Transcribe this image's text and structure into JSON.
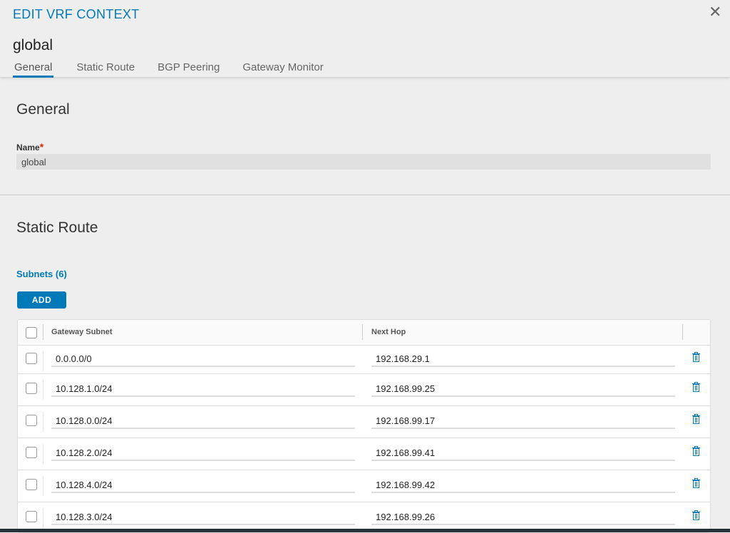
{
  "header": {
    "title": "EDIT VRF CONTEXT",
    "context_name": "global",
    "close_icon": "close-icon",
    "tabs": [
      {
        "label": "General",
        "active": true
      },
      {
        "label": "Static Route"
      },
      {
        "label": "BGP Peering"
      },
      {
        "label": "Gateway Monitor"
      }
    ]
  },
  "general": {
    "heading": "General",
    "name_label": "Name",
    "required_mark": "*",
    "name_value": "global"
  },
  "static_route": {
    "heading": "Static Route",
    "subnets_label": "Subnets (6)",
    "add_label": "ADD",
    "columns": [
      "Gateway Subnet",
      "Next Hop"
    ],
    "rows": [
      {
        "subnet": "0.0.0.0/0",
        "next_hop": "192.168.29.1"
      },
      {
        "subnet": "10.128.1.0/24",
        "next_hop": "192.168.99.25"
      },
      {
        "subnet": "10.128.0.0/24",
        "next_hop": "192.168.99.17"
      },
      {
        "subnet": "10.128.2.0/24",
        "next_hop": "192.168.99.41"
      },
      {
        "subnet": "10.128.4.0/24",
        "next_hop": "192.168.99.42"
      },
      {
        "subnet": "10.128.3.0/24",
        "next_hop": "192.168.99.26"
      }
    ]
  },
  "colors": {
    "accent": "#0079b8",
    "required": "#e12200"
  }
}
